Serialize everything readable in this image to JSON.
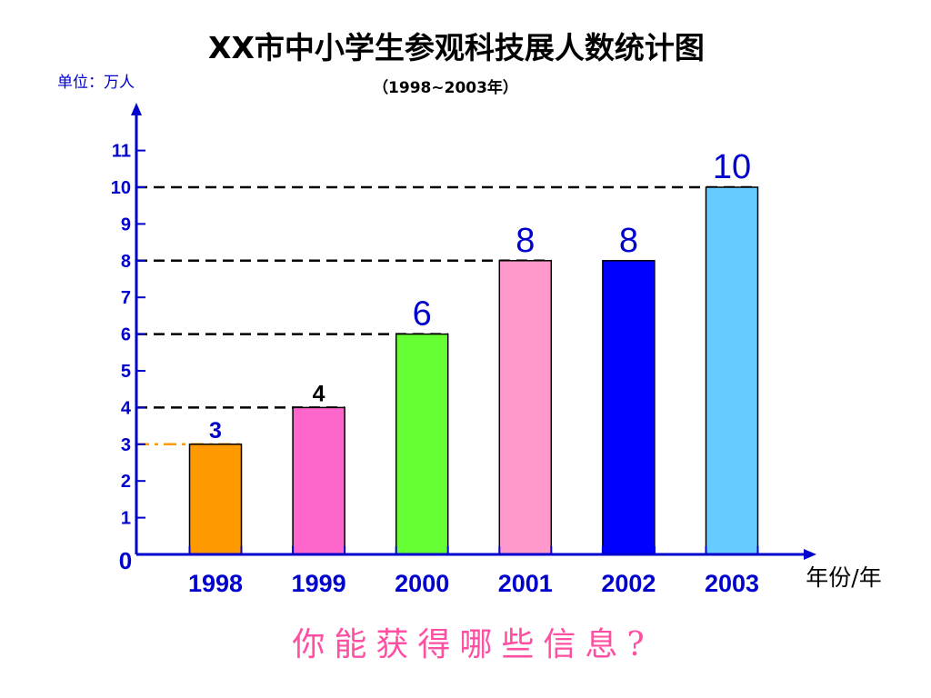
{
  "title": "XX市中小学生参观科技展人数统计图",
  "subtitle": "（1998~2003年）",
  "unit_label": "单位：万人",
  "question": "你能获得哪些信息?",
  "chart_data": {
    "type": "bar",
    "title": "XX市中小学生参观科技展人数统计图",
    "subtitle": "（1998~2003年）",
    "ylabel": "单位：万人",
    "xlabel": "年份/年",
    "categories": [
      "1998",
      "1999",
      "2000",
      "2001",
      "2002",
      "2003"
    ],
    "values": [
      3,
      4,
      6,
      8,
      8,
      10
    ],
    "data_labels": [
      "3",
      "4",
      "6",
      "8",
      "8",
      "10"
    ],
    "bar_colors": [
      "#ff9900",
      "#ff66cc",
      "#66ff33",
      "#ff99cc",
      "#0000ff",
      "#66ccff"
    ],
    "label_colors": [
      "#0000cc",
      "#000000",
      "#0000cc",
      "#0000cc",
      "#0000cc",
      "#0000cc"
    ],
    "ylim": [
      0,
      11
    ],
    "yticks": [
      1,
      2,
      3,
      4,
      5,
      6,
      7,
      8,
      9,
      10,
      11
    ],
    "origin_label": "0",
    "reference_lines": [
      {
        "value": 3,
        "color": "#ff9900",
        "style": "dash-dot"
      },
      {
        "value": 4,
        "color": "#000000",
        "style": "dashed"
      },
      {
        "value": 6,
        "color": "#000000",
        "style": "dashed"
      },
      {
        "value": 8,
        "color": "#000000",
        "style": "dashed"
      },
      {
        "value": 10,
        "color": "#000000",
        "style": "dashed"
      }
    ],
    "axis_color": "#0000cc",
    "grid": false
  }
}
